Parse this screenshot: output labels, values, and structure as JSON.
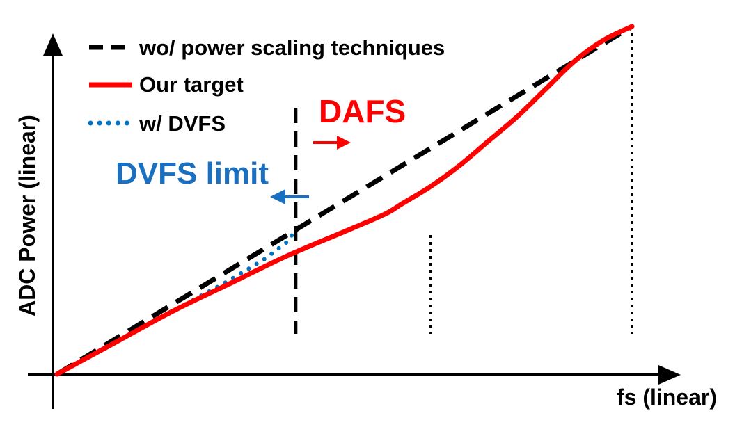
{
  "chart_data": {
    "type": "line",
    "title": "",
    "xlabel": "fs (linear)",
    "ylabel": "ADC Power (linear)",
    "xlim": [
      0,
      100
    ],
    "ylim": [
      0,
      100
    ],
    "grid": false,
    "legend_position": "top-left",
    "series": [
      {
        "name": "wo/ power scaling techniques",
        "style": "dashed",
        "color": "#000000",
        "x": [
          0,
          100
        ],
        "y": [
          0,
          100
        ]
      },
      {
        "name": "Our target",
        "style": "solid",
        "color": "#ff0000",
        "x": [
          0,
          10,
          20,
          30,
          40,
          50,
          57,
          60,
          65,
          70,
          75,
          80,
          85,
          90,
          95,
          100
        ],
        "y": [
          0,
          9,
          18,
          26,
          34,
          41,
          46,
          49,
          54,
          60,
          67,
          74,
          82,
          90,
          96,
          100
        ]
      },
      {
        "name": "w/ DVFS",
        "style": "dotted",
        "color": "#0070c0",
        "x": [
          0,
          10,
          20,
          30,
          36,
          38,
          40,
          41.5
        ],
        "y": [
          0,
          9,
          18,
          27,
          33,
          35.5,
          38,
          41.5
        ]
      }
    ],
    "vertical_markers": [
      {
        "x": 41.5,
        "style": "dashed",
        "color": "#000000"
      },
      {
        "x": 65,
        "style": "dotted",
        "color": "#000000"
      },
      {
        "x": 100,
        "style": "dotted",
        "color": "#000000"
      }
    ],
    "annotations": [
      {
        "text": "DAFS",
        "color": "#ff0000",
        "arrow": "right"
      },
      {
        "text": "DVFS limit",
        "color": "#1a6fc0",
        "arrow": "left"
      }
    ]
  }
}
